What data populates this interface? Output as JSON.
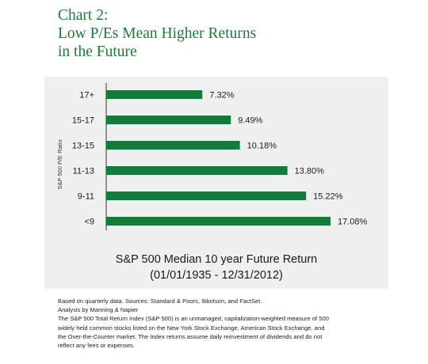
{
  "title_lines": [
    "Chart 2:",
    "Low P/Es Mean Higher Returns",
    "in the Future"
  ],
  "colors": {
    "title": "#1e7a3a",
    "bar": "#157a3a",
    "panel": "#f0f0f0"
  },
  "chart_data": {
    "type": "bar",
    "orientation": "horizontal",
    "categories": [
      "17+",
      "15-17",
      "13-15",
      "11-13",
      "9-11",
      "<9"
    ],
    "values": [
      7.32,
      9.49,
      10.18,
      13.8,
      15.22,
      17.08
    ],
    "value_labels": [
      "7.32%",
      "9.49%",
      "10.18%",
      "13.80%",
      "15.22%",
      "17.08%"
    ],
    "ylabel": "S&P 500 P/E Ratio",
    "xlabel_lines": [
      "S&P 500 Median 10 year Future Return",
      "(01/01/1935 - 12/31/2012)"
    ],
    "xlim": [
      0,
      17.08
    ],
    "grid": false
  },
  "notes": [
    "Based on quarterly data. Sources: Standard & Poors, Ibbotson, and FactSet.",
    "Analysis by Manning & Napier",
    "The S&P 500 Total Return Index (S&P 500) is an unmanaged, capitalization-weighted measure of 500",
    "widely held common stocks listed on the New York Stock Exchange, American Stock Exchange, and",
    "the Over-the-Counter market. The Index returns assume daily reinvestment of dividends and do not",
    "reflect any fees or expenses."
  ]
}
